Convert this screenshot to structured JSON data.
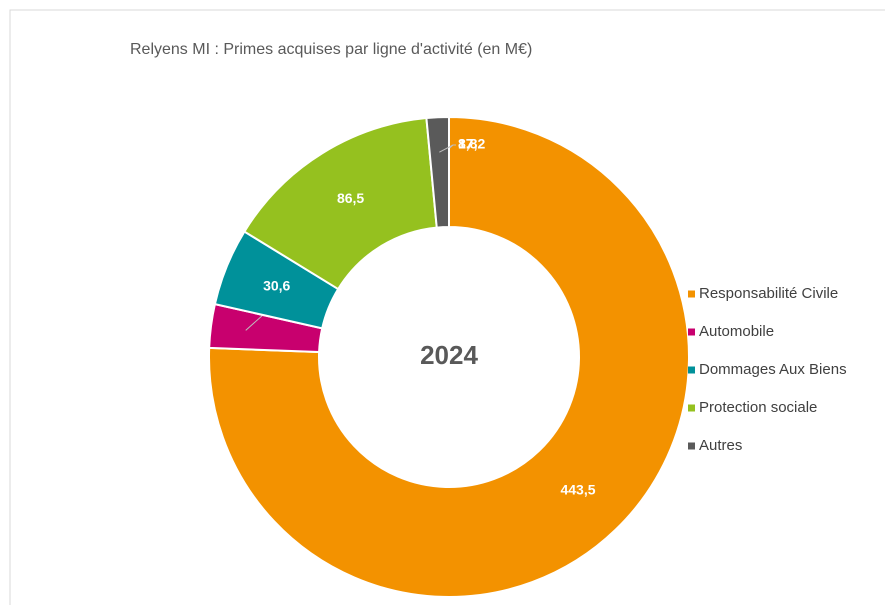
{
  "chart_data": {
    "type": "donut",
    "title": "Relyens MI : Primes acquises par ligne d'activité (en M€)",
    "center_label": "2024",
    "categories": [
      "Responsabilité Civile",
      "Automobile",
      "Dommages Aux Biens",
      "Protection sociale",
      "Autres"
    ],
    "values": [
      443.5,
      17.2,
      30.6,
      86.5,
      8.8
    ],
    "value_labels": [
      "443,5",
      "17,2",
      "30,6",
      "86,5",
      "8,8"
    ],
    "colors": [
      "#f39200",
      "#c8006e",
      "#00919a",
      "#95c11f",
      "#5a5a5a"
    ],
    "legend": "right"
  }
}
